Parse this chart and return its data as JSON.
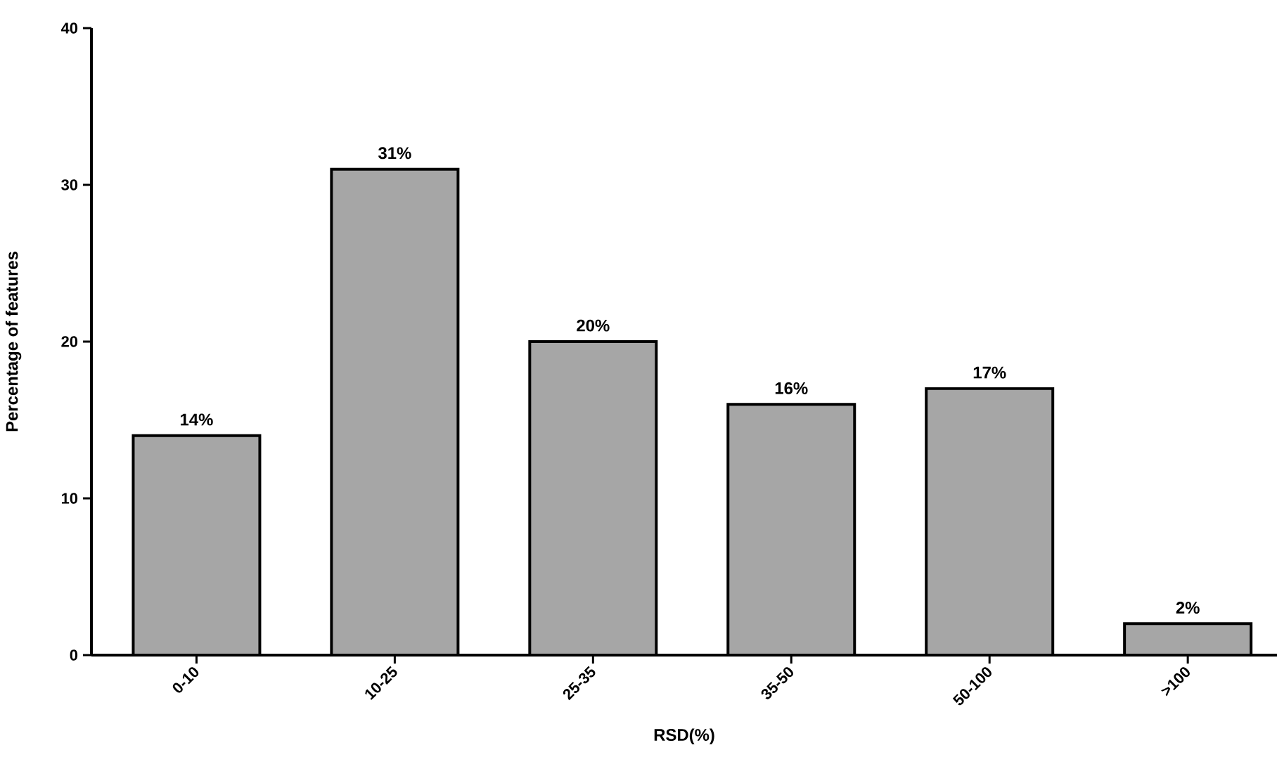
{
  "chart_data": {
    "type": "bar",
    "xlabel": "RSD(%)",
    "ylabel": "Percentage of features",
    "categories": [
      "0-10",
      "10-25",
      "25-35",
      "35-50",
      "50-100",
      ">100"
    ],
    "values": [
      14,
      31,
      20,
      16,
      17,
      2
    ],
    "value_labels": [
      "14%",
      "31%",
      "20%",
      "16%",
      "17%",
      "2%"
    ],
    "color": "#a6a6a6",
    "ylim": [
      0,
      40
    ],
    "yticks": [
      0,
      10,
      20,
      30,
      40
    ],
    "grid": false
  }
}
